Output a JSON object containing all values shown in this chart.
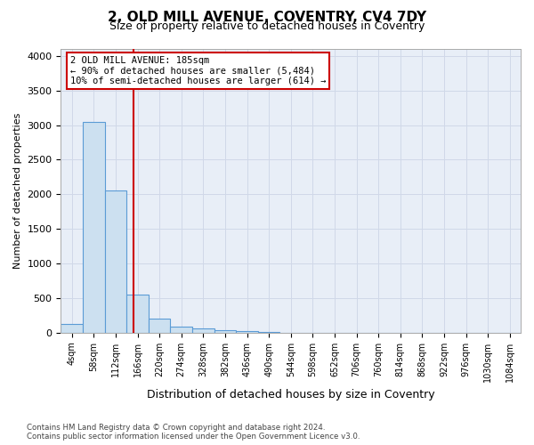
{
  "title_line1": "2, OLD MILL AVENUE, COVENTRY, CV4 7DY",
  "title_line2": "Size of property relative to detached houses in Coventry",
  "xlabel": "Distribution of detached houses by size in Coventry",
  "ylabel": "Number of detached properties",
  "bar_labels": [
    "4sqm",
    "58sqm",
    "112sqm",
    "166sqm",
    "220sqm",
    "274sqm",
    "328sqm",
    "382sqm",
    "436sqm",
    "490sqm",
    "544sqm",
    "598sqm",
    "652sqm",
    "706sqm",
    "760sqm",
    "814sqm",
    "868sqm",
    "922sqm",
    "976sqm",
    "1030sqm",
    "1084sqm"
  ],
  "bar_values": [
    120,
    3050,
    2060,
    555,
    200,
    85,
    55,
    30,
    20,
    5,
    2,
    0,
    0,
    0,
    0,
    0,
    0,
    0,
    0,
    0,
    0
  ],
  "bar_color": "#cce0f0",
  "bar_edge_color": "#5b9bd5",
  "grid_color": "#d0d8e8",
  "background_color": "#e8eef7",
  "vline_x": 2.83,
  "vline_color": "#cc0000",
  "annotation_text_line1": "2 OLD MILL AVENUE: 185sqm",
  "annotation_text_line2": "← 90% of detached houses are smaller (5,484)",
  "annotation_text_line3": "10% of semi-detached houses are larger (614) →",
  "annotation_box_color": "#cc0000",
  "ylim": [
    0,
    4100
  ],
  "yticks": [
    0,
    500,
    1000,
    1500,
    2000,
    2500,
    3000,
    3500,
    4000
  ],
  "footer_line1": "Contains HM Land Registry data © Crown copyright and database right 2024.",
  "footer_line2": "Contains public sector information licensed under the Open Government Licence v3.0."
}
